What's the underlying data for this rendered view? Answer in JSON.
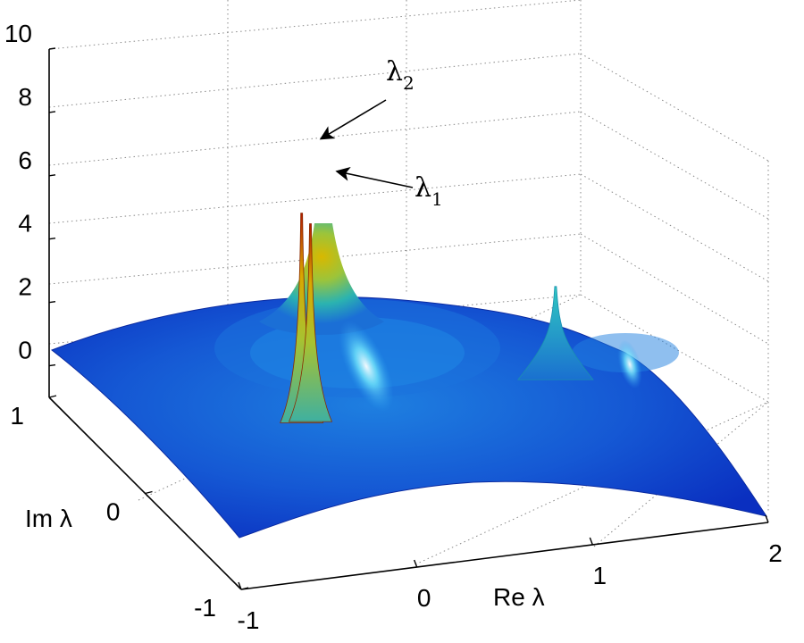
{
  "chart_data": {
    "type": "surface",
    "colormap": "jet",
    "x": {
      "label": "Re λ",
      "range": [
        -1,
        2
      ],
      "ticks": [
        "-1",
        "0",
        "1",
        "2"
      ]
    },
    "y": {
      "label": "Im λ",
      "range": [
        -1,
        1
      ],
      "ticks": [
        "-1",
        "0",
        "1"
      ]
    },
    "z": {
      "range": [
        -1,
        10
      ],
      "ticks": [
        "0",
        "2",
        "4",
        "6",
        "8",
        "10"
      ]
    },
    "grid": true,
    "peaks": [
      {
        "re": 0.0,
        "im": 0.2,
        "height": 7.2
      },
      {
        "re": 0.05,
        "im": 0.2,
        "height": 6.8
      },
      {
        "re": 1.5,
        "im": 0.3,
        "height": 3.2
      }
    ],
    "annotations": [
      {
        "text": "λ",
        "sub": "2",
        "target": "peak-1"
      },
      {
        "text": "λ",
        "sub": "1",
        "target": "peak-2"
      }
    ]
  }
}
